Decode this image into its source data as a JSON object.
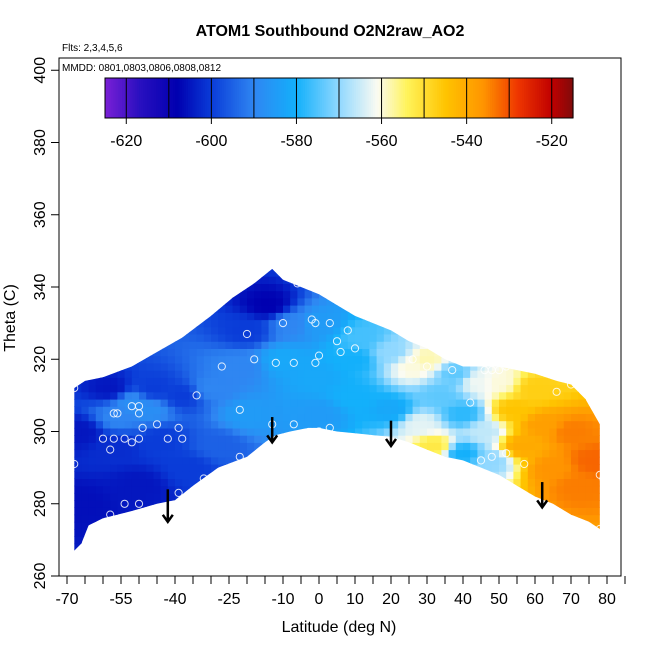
{
  "chart_data": {
    "type": "heatmap",
    "title": "ATOM1 Southbound O2N2raw_AO2",
    "subtitle_flights": "Flts: 2,3,4,5,6",
    "subtitle_dates": "MMDD: 0801,0803,0806,0808,0812",
    "xlabel": "Latitude (deg N)",
    "ylabel": "Theta (C)",
    "xlim": [
      -70,
      85
    ],
    "ylim": [
      260,
      400
    ],
    "x_ticks": [
      -70,
      -55,
      -40,
      -25,
      -10,
      0,
      10,
      20,
      30,
      40,
      50,
      60,
      70,
      80
    ],
    "x_tick_labels": [
      "-70",
      "-55",
      "-40",
      "-25",
      "-10",
      "0",
      "10",
      "20",
      "30",
      "40",
      "50",
      "60",
      "70",
      "80"
    ],
    "x_minor_ticks": [
      -65,
      -60,
      -50,
      -45,
      -35,
      -30,
      -20,
      -15,
      -5,
      5,
      15,
      25,
      35,
      45,
      55,
      65,
      75,
      85
    ],
    "y_ticks": [
      260,
      280,
      300,
      320,
      340,
      360,
      380,
      400
    ],
    "y_tick_labels": [
      "260",
      "280",
      "300",
      "320",
      "340",
      "360",
      "380",
      "400"
    ],
    "colorbar": {
      "range": [
        -625,
        -515
      ],
      "ticks": [
        -620,
        -600,
        -580,
        -560,
        -540,
        -520
      ],
      "tick_labels": [
        "-620",
        "-600",
        "-580",
        "-560",
        "-540",
        "-520"
      ],
      "separators": [
        -620,
        -610,
        -600,
        -590,
        -580,
        -570,
        -560,
        -550,
        -540,
        -530,
        -520
      ],
      "color_stops": [
        {
          "v": -625,
          "c": "#7a1fd6"
        },
        {
          "v": -617,
          "c": "#2a10c0"
        },
        {
          "v": -608,
          "c": "#0000b0"
        },
        {
          "v": -600,
          "c": "#0a3cd8"
        },
        {
          "v": -590,
          "c": "#2f86f2"
        },
        {
          "v": -580,
          "c": "#13b0fb"
        },
        {
          "v": -570,
          "c": "#90d8ff"
        },
        {
          "v": -561,
          "c": "#fbfbf2"
        },
        {
          "v": -554,
          "c": "#fff35a"
        },
        {
          "v": -545,
          "c": "#ffc400"
        },
        {
          "v": -536,
          "c": "#ff9400"
        },
        {
          "v": -528,
          "c": "#ee3600"
        },
        {
          "v": -520,
          "c": "#c00000"
        },
        {
          "v": -515,
          "c": "#800a0a"
        }
      ]
    },
    "field": {
      "outline": [
        [
          -68,
          267
        ],
        [
          -66,
          269
        ],
        [
          -64,
          274
        ],
        [
          -60,
          276
        ],
        [
          -52,
          278
        ],
        [
          -45,
          280
        ],
        [
          -40,
          281
        ],
        [
          -35,
          285
        ],
        [
          -28,
          290
        ],
        [
          -20,
          293
        ],
        [
          -15,
          297
        ],
        [
          -12,
          299
        ],
        [
          -8,
          300
        ],
        [
          -3,
          301
        ],
        [
          0,
          301
        ],
        [
          5,
          300
        ],
        [
          10,
          299.5
        ],
        [
          15,
          299
        ],
        [
          20,
          298.5
        ],
        [
          25,
          297
        ],
        [
          30,
          295
        ],
        [
          35,
          293
        ],
        [
          40,
          292
        ],
        [
          45,
          290
        ],
        [
          50,
          288
        ],
        [
          55,
          285
        ],
        [
          60,
          282
        ],
        [
          65,
          280
        ],
        [
          70,
          277
        ],
        [
          75,
          275
        ],
        [
          78,
          273
        ],
        [
          78,
          302
        ],
        [
          74,
          309
        ],
        [
          70,
          313
        ],
        [
          66,
          314
        ],
        [
          60,
          316
        ],
        [
          55,
          317
        ],
        [
          50,
          318
        ],
        [
          45,
          318
        ],
        [
          40,
          318
        ],
        [
          35,
          320
        ],
        [
          30,
          323
        ],
        [
          25,
          325
        ],
        [
          20,
          328
        ],
        [
          15,
          330
        ],
        [
          10,
          332
        ],
        [
          5,
          335
        ],
        [
          0,
          338
        ],
        [
          -5,
          340
        ],
        [
          -10,
          342
        ],
        [
          -13,
          345
        ],
        [
          -18,
          341
        ],
        [
          -24,
          337
        ],
        [
          -30,
          332
        ],
        [
          -38,
          326
        ],
        [
          -45,
          322
        ],
        [
          -52,
          318
        ],
        [
          -60,
          315
        ],
        [
          -65,
          314
        ],
        [
          -68,
          312
        ]
      ],
      "anchors": [
        {
          "x": -66,
          "y": 280,
          "v": -606
        },
        {
          "x": -66,
          "y": 300,
          "v": -605
        },
        {
          "x": -56,
          "y": 304,
          "v": -590
        },
        {
          "x": -52,
          "y": 308,
          "v": -588
        },
        {
          "x": -47,
          "y": 306,
          "v": -588
        },
        {
          "x": -56,
          "y": 296,
          "v": -602
        },
        {
          "x": -44,
          "y": 298,
          "v": -600
        },
        {
          "x": -46,
          "y": 312,
          "v": -600
        },
        {
          "x": -58,
          "y": 312,
          "v": -605
        },
        {
          "x": -38,
          "y": 310,
          "v": -600
        },
        {
          "x": -30,
          "y": 312,
          "v": -590
        },
        {
          "x": -22,
          "y": 318,
          "v": -590
        },
        {
          "x": -20,
          "y": 305,
          "v": -585
        },
        {
          "x": -28,
          "y": 296,
          "v": -595
        },
        {
          "x": -50,
          "y": 285,
          "v": -605
        },
        {
          "x": -36,
          "y": 290,
          "v": -600
        },
        {
          "x": -14,
          "y": 335,
          "v": -608
        },
        {
          "x": -20,
          "y": 328,
          "v": -600
        },
        {
          "x": -8,
          "y": 330,
          "v": -590
        },
        {
          "x": -10,
          "y": 320,
          "v": -582
        },
        {
          "x": 0,
          "y": 330,
          "v": -585
        },
        {
          "x": 0,
          "y": 315,
          "v": -582
        },
        {
          "x": 0,
          "y": 305,
          "v": -585
        },
        {
          "x": 10,
          "y": 320,
          "v": -580
        },
        {
          "x": 10,
          "y": 310,
          "v": -580
        },
        {
          "x": 12,
          "y": 326,
          "v": -576
        },
        {
          "x": 20,
          "y": 322,
          "v": -570
        },
        {
          "x": 20,
          "y": 306,
          "v": -582
        },
        {
          "x": 26,
          "y": 318,
          "v": -560
        },
        {
          "x": 30,
          "y": 320,
          "v": -558
        },
        {
          "x": 28,
          "y": 302,
          "v": -563
        },
        {
          "x": 32,
          "y": 296,
          "v": -552
        },
        {
          "x": 34,
          "y": 310,
          "v": -574
        },
        {
          "x": 38,
          "y": 316,
          "v": -574
        },
        {
          "x": 40,
          "y": 305,
          "v": -578
        },
        {
          "x": 40,
          "y": 294,
          "v": -580
        },
        {
          "x": 44,
          "y": 314,
          "v": -562
        },
        {
          "x": 46,
          "y": 300,
          "v": -566
        },
        {
          "x": 48,
          "y": 292,
          "v": -570
        },
        {
          "x": 50,
          "y": 314,
          "v": -560
        },
        {
          "x": 54,
          "y": 306,
          "v": -545
        },
        {
          "x": 56,
          "y": 296,
          "v": -540
        },
        {
          "x": 60,
          "y": 312,
          "v": -547
        },
        {
          "x": 62,
          "y": 302,
          "v": -538
        },
        {
          "x": 65,
          "y": 290,
          "v": -536
        },
        {
          "x": 70,
          "y": 300,
          "v": -534
        },
        {
          "x": 72,
          "y": 285,
          "v": -534
        },
        {
          "x": 76,
          "y": 292,
          "v": -532
        }
      ]
    },
    "observation_points": [
      [
        -68,
        312
      ],
      [
        -68,
        291
      ],
      [
        -57,
        305
      ],
      [
        -56,
        305
      ],
      [
        -52,
        307
      ],
      [
        -50,
        307
      ],
      [
        -50,
        305
      ],
      [
        -49,
        301
      ],
      [
        -50,
        298
      ],
      [
        -52,
        297
      ],
      [
        -54,
        298
      ],
      [
        -57,
        298
      ],
      [
        -58,
        295
      ],
      [
        -60,
        298
      ],
      [
        -58,
        277
      ],
      [
        -54,
        280
      ],
      [
        -50,
        280
      ],
      [
        -45,
        302
      ],
      [
        -42,
        298
      ],
      [
        -39,
        301
      ],
      [
        -38,
        298
      ],
      [
        -34,
        310
      ],
      [
        -32,
        287
      ],
      [
        -39,
        283
      ],
      [
        -27,
        318
      ],
      [
        -22,
        306
      ],
      [
        -22,
        293
      ],
      [
        -20,
        327
      ],
      [
        -18,
        320
      ],
      [
        -12,
        319
      ],
      [
        -13,
        302
      ],
      [
        -10,
        330
      ],
      [
        -7,
        319
      ],
      [
        -7,
        302
      ],
      [
        -6,
        341
      ],
      [
        -2,
        331
      ],
      [
        -1,
        330
      ],
      [
        0,
        321
      ],
      [
        -1,
        319
      ],
      [
        0,
        300
      ],
      [
        0,
        299
      ],
      [
        3,
        330
      ],
      [
        5,
        325
      ],
      [
        6,
        322
      ],
      [
        8,
        328
      ],
      [
        10,
        323
      ],
      [
        3,
        301
      ],
      [
        37,
        317
      ],
      [
        42,
        308
      ],
      [
        46,
        317
      ],
      [
        48,
        317
      ],
      [
        48,
        293
      ],
      [
        45,
        292
      ],
      [
        50,
        317
      ],
      [
        52,
        318
      ],
      [
        52,
        294
      ],
      [
        57,
        291
      ],
      [
        66,
        311
      ],
      [
        70,
        313
      ],
      [
        78,
        288
      ],
      [
        79,
        287
      ],
      [
        78,
        273
      ],
      [
        26,
        320
      ],
      [
        30,
        318
      ]
    ],
    "arrows": [
      {
        "x": -42,
        "y_top": 284,
        "y_tip": 275
      },
      {
        "x": -13,
        "y_top": 304,
        "y_tip": 297
      },
      {
        "x": 20,
        "y_top": 303,
        "y_tip": 296
      },
      {
        "x": 62,
        "y_top": 286,
        "y_tip": 279
      }
    ]
  }
}
